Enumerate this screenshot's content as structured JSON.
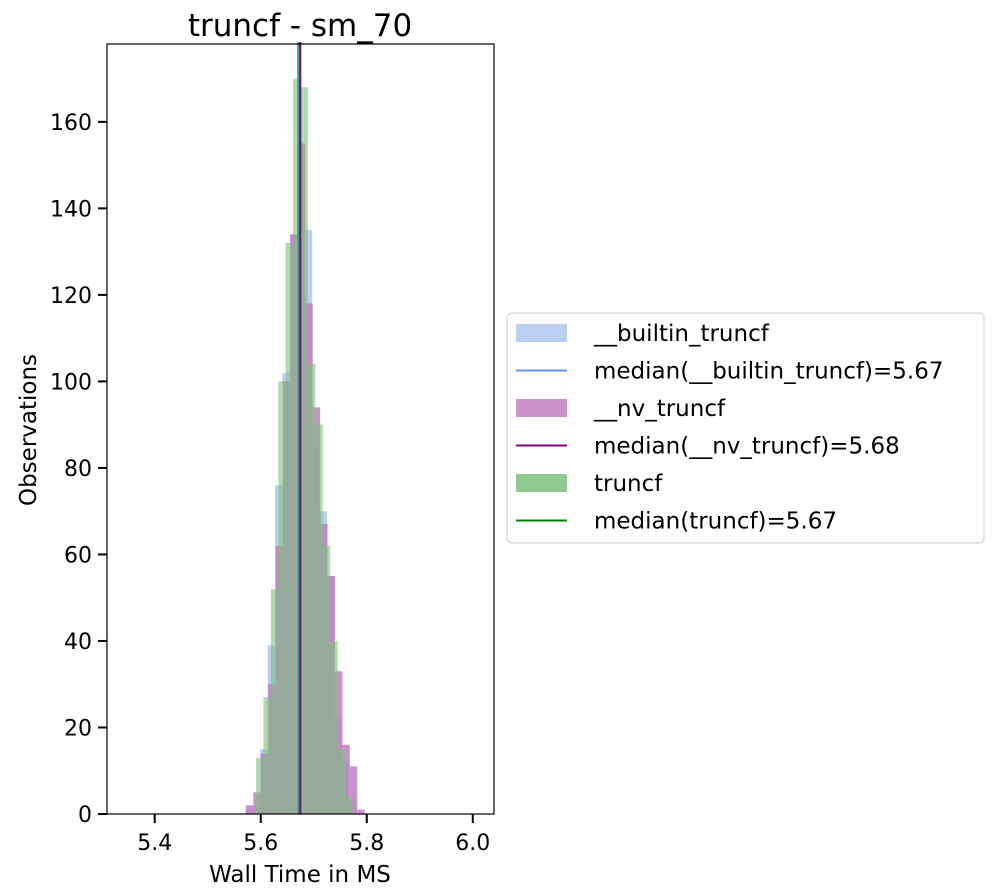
{
  "chart_data": {
    "type": "bar",
    "title": "truncf - sm_70",
    "xlabel": "Wall Time in MS",
    "ylabel": "Observations",
    "xlim": [
      5.31,
      6.04
    ],
    "ylim": [
      0,
      178
    ],
    "xticks": [
      "5.4",
      "5.6",
      "5.8",
      "6.0"
    ],
    "xtick_values": [
      5.4,
      5.6,
      5.8,
      6.0
    ],
    "yticks": [
      "0",
      "20",
      "40",
      "60",
      "80",
      "100",
      "120",
      "140",
      "160"
    ],
    "ytick_values": [
      0,
      20,
      40,
      60,
      80,
      100,
      120,
      140,
      160
    ],
    "grid": false,
    "legend_position": "center-right-outside",
    "bin_width": 0.014,
    "series": [
      {
        "name": "__builtin_truncf",
        "color": "#aec7f0",
        "median": 5.67,
        "median_color": "#6495ed",
        "median_label": "median(__builtin_truncf)=5.67",
        "bins": [
          {
            "x": 5.571,
            "y": 1
          },
          {
            "x": 5.585,
            "y": 2
          },
          {
            "x": 5.599,
            "y": 15
          },
          {
            "x": 5.613,
            "y": 39
          },
          {
            "x": 5.627,
            "y": 76
          },
          {
            "x": 5.641,
            "y": 102
          },
          {
            "x": 5.655,
            "y": 134
          },
          {
            "x": 5.669,
            "y": 155
          },
          {
            "x": 5.683,
            "y": 135
          },
          {
            "x": 5.697,
            "y": 86
          },
          {
            "x": 5.711,
            "y": 70
          },
          {
            "x": 5.725,
            "y": 55
          },
          {
            "x": 5.739,
            "y": 22
          },
          {
            "x": 5.753,
            "y": 12
          },
          {
            "x": 5.767,
            "y": 3
          }
        ]
      },
      {
        "name": "__nv_truncf",
        "color": "#bf7fbf",
        "median": 5.675,
        "median_color": "#800080",
        "median_label": "median(__nv_truncf)=5.68",
        "bins": [
          {
            "x": 5.572,
            "y": 2
          },
          {
            "x": 5.586,
            "y": 5
          },
          {
            "x": 5.6,
            "y": 14
          },
          {
            "x": 5.614,
            "y": 30
          },
          {
            "x": 5.628,
            "y": 62
          },
          {
            "x": 5.642,
            "y": 100
          },
          {
            "x": 5.656,
            "y": 134
          },
          {
            "x": 5.67,
            "y": 155
          },
          {
            "x": 5.684,
            "y": 118
          },
          {
            "x": 5.698,
            "y": 94
          },
          {
            "x": 5.712,
            "y": 67
          },
          {
            "x": 5.726,
            "y": 55
          },
          {
            "x": 5.74,
            "y": 33
          },
          {
            "x": 5.754,
            "y": 16
          },
          {
            "x": 5.768,
            "y": 11
          },
          {
            "x": 5.782,
            "y": 1
          }
        ]
      },
      {
        "name": "truncf",
        "color": "#7fbf7f",
        "median": 5.673,
        "median_color": "#008000",
        "median_label": "median(truncf)=5.67",
        "bins": [
          {
            "x": 5.591,
            "y": 13
          },
          {
            "x": 5.605,
            "y": 27
          },
          {
            "x": 5.619,
            "y": 52
          },
          {
            "x": 5.633,
            "y": 100
          },
          {
            "x": 5.647,
            "y": 132
          },
          {
            "x": 5.661,
            "y": 170
          },
          {
            "x": 5.675,
            "y": 168
          },
          {
            "x": 5.689,
            "y": 104
          },
          {
            "x": 5.703,
            "y": 90
          },
          {
            "x": 5.717,
            "y": 62
          },
          {
            "x": 5.731,
            "y": 40
          },
          {
            "x": 5.745,
            "y": 15
          },
          {
            "x": 5.759,
            "y": 4
          }
        ]
      }
    ]
  }
}
